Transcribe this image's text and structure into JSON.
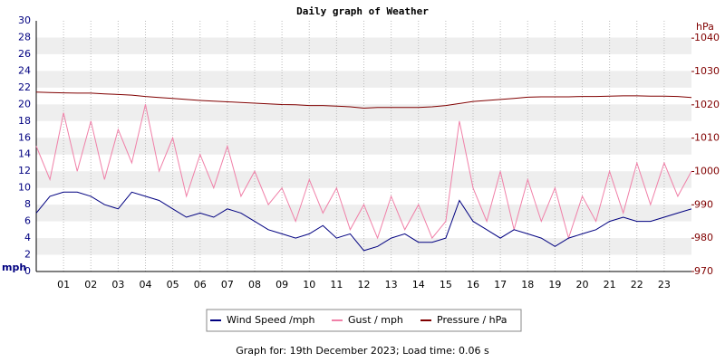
{
  "chart_data": {
    "type": "line",
    "title": "Daily graph of Weather",
    "y_label": "mph",
    "y2_label": "hPa",
    "footer": "Graph for: 19th December 2023; Load time: 0.06 s",
    "x": [
      0,
      0.5,
      1,
      1.5,
      2,
      2.5,
      3,
      3.5,
      4,
      4.5,
      5,
      5.5,
      6,
      6.5,
      7,
      7.5,
      8,
      8.5,
      9,
      9.5,
      10,
      10.5,
      11,
      11.5,
      12,
      12.5,
      13,
      13.5,
      14,
      14.5,
      15,
      15.5,
      16,
      16.5,
      17,
      17.5,
      18,
      18.5,
      19,
      19.5,
      20,
      20.5,
      21,
      21.5,
      22,
      22.5,
      23,
      23.5,
      24
    ],
    "xlim": [
      0,
      24
    ],
    "xticks": [
      {
        "value": 1,
        "label": "01"
      },
      {
        "value": 2,
        "label": "02"
      },
      {
        "value": 3,
        "label": "03"
      },
      {
        "value": 4,
        "label": "04"
      },
      {
        "value": 5,
        "label": "05"
      },
      {
        "value": 6,
        "label": "06"
      },
      {
        "value": 7,
        "label": "07"
      },
      {
        "value": 8,
        "label": "08"
      },
      {
        "value": 9,
        "label": "09"
      },
      {
        "value": 10,
        "label": "10"
      },
      {
        "value": 11,
        "label": "11"
      },
      {
        "value": 12,
        "label": "12"
      },
      {
        "value": 13,
        "label": "13"
      },
      {
        "value": 14,
        "label": "14"
      },
      {
        "value": 15,
        "label": "15"
      },
      {
        "value": 16,
        "label": "16"
      },
      {
        "value": 17,
        "label": "17"
      },
      {
        "value": 18,
        "label": "18"
      },
      {
        "value": 19,
        "label": "19"
      },
      {
        "value": 20,
        "label": "20"
      },
      {
        "value": 21,
        "label": "21"
      },
      {
        "value": 22,
        "label": "22"
      },
      {
        "value": 23,
        "label": "23"
      }
    ],
    "ylim": [
      0,
      30
    ],
    "yticks": [
      0,
      2,
      4,
      6,
      8,
      10,
      12,
      14,
      16,
      18,
      20,
      22,
      24,
      26,
      28,
      30
    ],
    "y2lim": [
      970,
      1045.2
    ],
    "y2ticks": [
      970,
      980,
      990,
      1000,
      1010,
      1020,
      1030,
      1040
    ],
    "grid": true,
    "series": [
      {
        "name": "Wind Speed /mph",
        "color": "#000080",
        "values": [
          7,
          9,
          9.5,
          9.5,
          9,
          8,
          7.5,
          9.5,
          9,
          8.5,
          7.5,
          6.5,
          7,
          6.5,
          7.5,
          7,
          6,
          5,
          4.5,
          4,
          4.5,
          5.5,
          4,
          4.5,
          2.5,
          3,
          4,
          4.5,
          3.5,
          3.5,
          4,
          8.5,
          6,
          5,
          4,
          5,
          4.5,
          4,
          3,
          4,
          4.5,
          5,
          6,
          6.5,
          6,
          6,
          6.5,
          7,
          7.5
        ]
      },
      {
        "name": "Gust / mph",
        "color": "#f080a8",
        "values": [
          15,
          11,
          19,
          12,
          18,
          11,
          17,
          13,
          20,
          12,
          16,
          9,
          14,
          10,
          15,
          9,
          12,
          8,
          10,
          6,
          11,
          7,
          10,
          5,
          8,
          4,
          9,
          5,
          8,
          4,
          6,
          18,
          10,
          6,
          12,
          5,
          11,
          6,
          10,
          4,
          9,
          6,
          12,
          7,
          13,
          8,
          13,
          9,
          12
        ]
      },
      {
        "name": "Pressure / hPa",
        "color": "#800000",
        "axis": "y2",
        "values": [
          1023.8,
          1023.7,
          1023.6,
          1023.5,
          1023.5,
          1023.3,
          1023.1,
          1022.9,
          1022.5,
          1022.2,
          1021.9,
          1021.6,
          1021.3,
          1021.1,
          1020.9,
          1020.7,
          1020.5,
          1020.3,
          1020.1,
          1020,
          1019.8,
          1019.8,
          1019.6,
          1019.4,
          1019,
          1019.2,
          1019.2,
          1019.2,
          1019.2,
          1019.4,
          1019.8,
          1020.4,
          1021,
          1021.3,
          1021.6,
          1021.9,
          1022.3,
          1022.4,
          1022.4,
          1022.4,
          1022.5,
          1022.5,
          1022.6,
          1022.7,
          1022.7,
          1022.6,
          1022.6,
          1022.5,
          1022.2
        ]
      }
    ]
  }
}
